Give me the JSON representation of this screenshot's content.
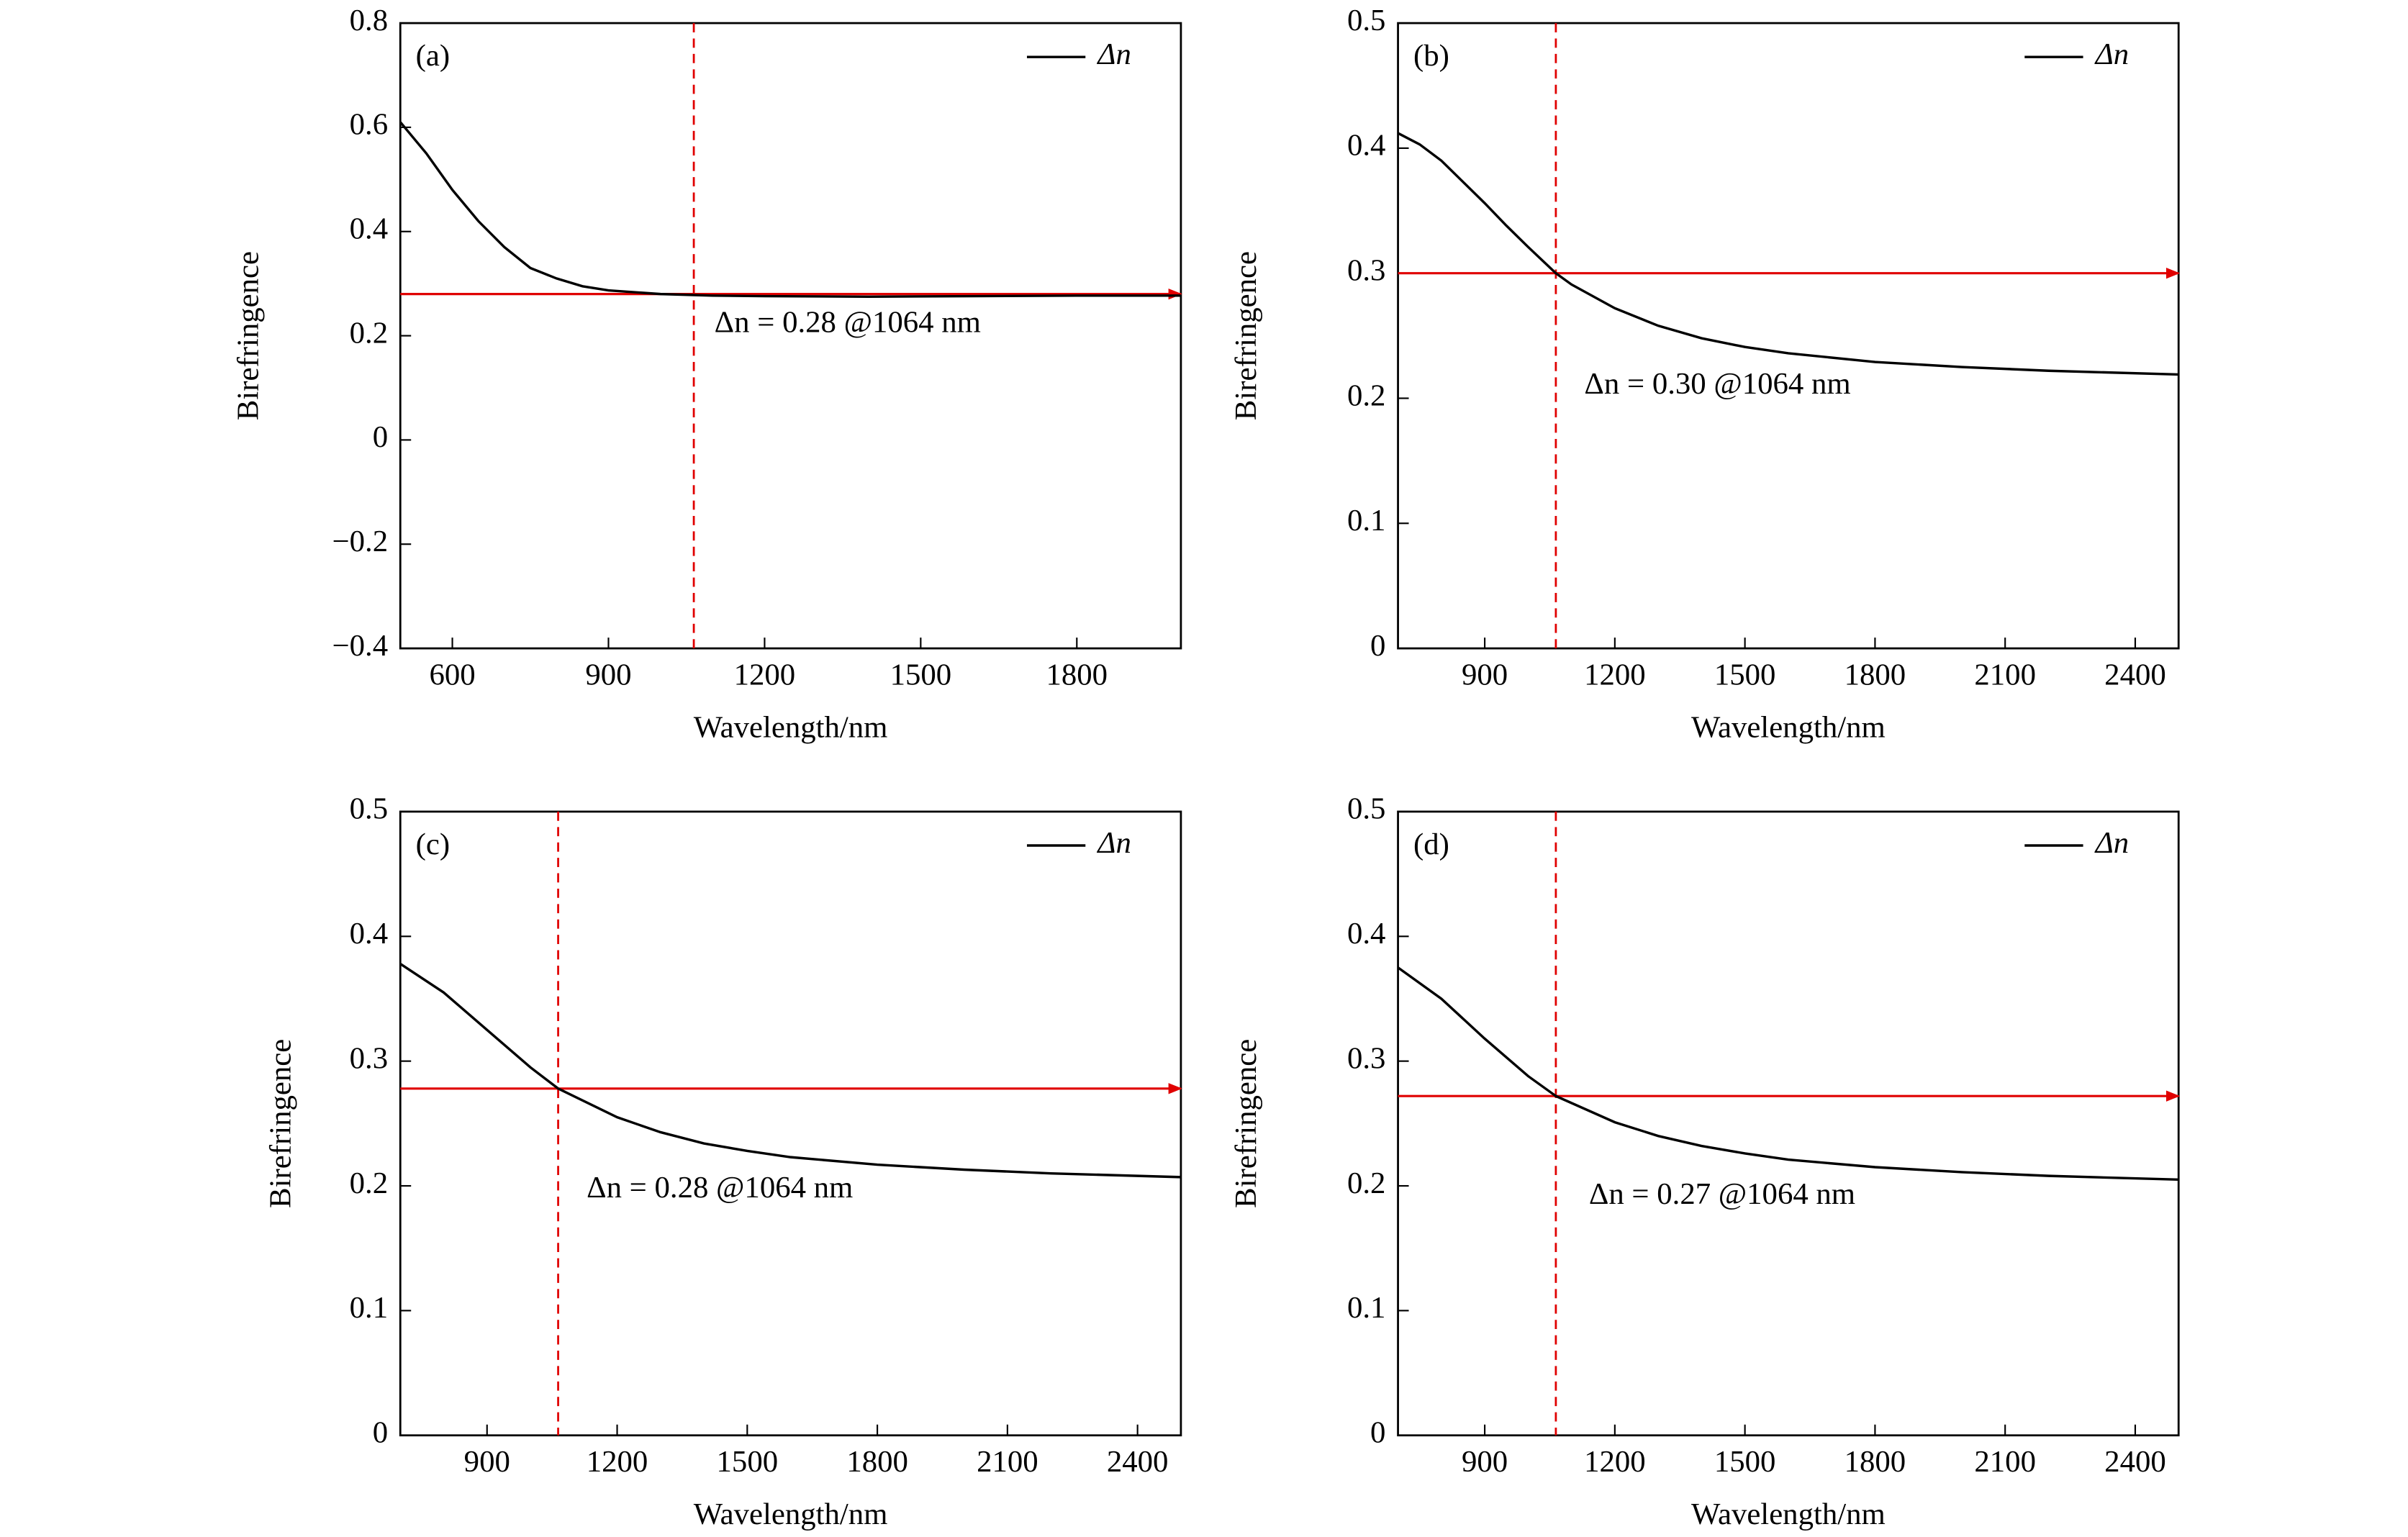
{
  "chart_data": [
    {
      "type": "line",
      "panel": "(a)",
      "xlabel": "Wavelength/nm",
      "ylabel": "Birefringence",
      "x": [
        500,
        550,
        600,
        650,
        700,
        750,
        800,
        850,
        900,
        1000,
        1100,
        1200,
        1400,
        1600,
        1800,
        2000
      ],
      "series": [
        {
          "name": "Δn",
          "color": "#000000",
          "values": [
            0.61,
            0.55,
            0.48,
            0.42,
            0.37,
            0.33,
            0.31,
            0.295,
            0.287,
            0.28,
            0.277,
            0.276,
            0.275,
            0.276,
            0.277,
            0.277
          ]
        }
      ],
      "xlim": [
        500,
        2000
      ],
      "xticks": [
        600,
        900,
        1200,
        1500,
        1800
      ],
      "ylim": [
        -0.4,
        0.8
      ],
      "yticks": [
        {
          "value": -0.4,
          "label": "−0.4"
        },
        {
          "value": -0.2,
          "label": "−0.2"
        },
        0,
        0.2,
        0.4,
        0.6,
        0.8
      ],
      "ref_x": 1064,
      "ref_y": 0.28,
      "ref_color": "#e00000",
      "annotation": "Δn = 0.28 @1064 nm",
      "legend": "upper right"
    },
    {
      "type": "line",
      "panel": "(b)",
      "xlabel": "Wavelength/nm",
      "ylabel": "Birefringence",
      "x": [
        700,
        750,
        800,
        850,
        900,
        950,
        1000,
        1064,
        1100,
        1200,
        1300,
        1400,
        1500,
        1600,
        1800,
        2000,
        2200,
        2500
      ],
      "series": [
        {
          "name": "Δn",
          "color": "#000000",
          "values": [
            0.412,
            0.403,
            0.39,
            0.373,
            0.356,
            0.338,
            0.321,
            0.3,
            0.291,
            0.272,
            0.258,
            0.248,
            0.241,
            0.236,
            0.229,
            0.225,
            0.222,
            0.219
          ]
        }
      ],
      "xlim": [
        700,
        2500
      ],
      "xticks": [
        900,
        1200,
        1500,
        1800,
        2100,
        2400
      ],
      "ylim": [
        0,
        0.5
      ],
      "yticks": [
        0,
        0.1,
        0.2,
        0.3,
        0.4,
        0.5
      ],
      "ref_x": 1064,
      "ref_y": 0.3,
      "ref_color": "#e00000",
      "annotation": "Δn = 0.30 @1064 nm",
      "legend": "upper right"
    },
    {
      "type": "line",
      "panel": "(c)",
      "xlabel": "Wavelength/nm",
      "ylabel": "Birefringence",
      "x": [
        700,
        800,
        900,
        1000,
        1064,
        1200,
        1300,
        1400,
        1500,
        1600,
        1800,
        2000,
        2200,
        2500
      ],
      "series": [
        {
          "name": "Δn",
          "color": "#000000",
          "values": [
            0.378,
            0.355,
            0.325,
            0.295,
            0.278,
            0.255,
            0.243,
            0.234,
            0.228,
            0.223,
            0.217,
            0.213,
            0.21,
            0.207
          ]
        }
      ],
      "xlim": [
        700,
        2500
      ],
      "xticks": [
        900,
        1200,
        1500,
        1800,
        2100,
        2400
      ],
      "ylim": [
        0,
        0.5
      ],
      "yticks": [
        0,
        0.1,
        0.2,
        0.3,
        0.4,
        0.5
      ],
      "ref_x": 1064,
      "ref_y": 0.278,
      "ref_color": "#e00000",
      "annotation": "Δn = 0.28 @1064 nm",
      "legend": "upper right"
    },
    {
      "type": "line",
      "panel": "(d)",
      "xlabel": "Wavelength/nm",
      "ylabel": "Birefringence",
      "x": [
        700,
        800,
        900,
        1000,
        1064,
        1200,
        1300,
        1400,
        1500,
        1600,
        1800,
        2000,
        2200,
        2500
      ],
      "series": [
        {
          "name": "Δn",
          "color": "#000000",
          "values": [
            0.375,
            0.35,
            0.318,
            0.288,
            0.272,
            0.251,
            0.24,
            0.232,
            0.226,
            0.221,
            0.215,
            0.211,
            0.208,
            0.205
          ]
        }
      ],
      "xlim": [
        700,
        2500
      ],
      "xticks": [
        900,
        1200,
        1500,
        1800,
        2100,
        2400
      ],
      "ylim": [
        0,
        0.5
      ],
      "yticks": [
        0,
        0.1,
        0.2,
        0.3,
        0.4,
        0.5
      ],
      "ref_x": 1064,
      "ref_y": 0.272,
      "ref_color": "#e00000",
      "annotation": "Δn = 0.27 @1064 nm",
      "legend": "upper right"
    }
  ]
}
